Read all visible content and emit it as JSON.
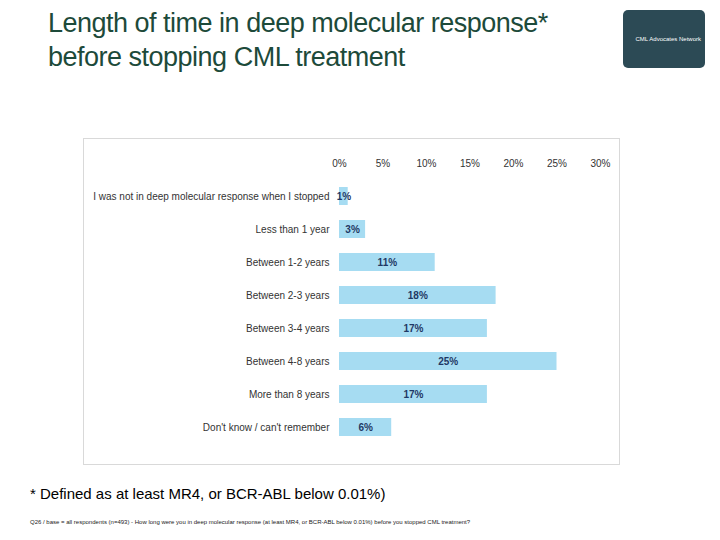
{
  "chart_data": {
    "type": "bar",
    "orientation": "horizontal",
    "title": "Length of time in deep molecular response* before stopping CML treatment",
    "logo": "CML Advocates Network",
    "footnote": "* Defined as at least MR4, or BCR-ABL below 0.01%)",
    "source": "Q26 / base = all respondents (n=493) - How long were you in deep molecular response (at least MR4, or BCR-ABL below 0.01%) before you stopped CML treatment?",
    "categories": [
      "I was not in deep molecular response when I stopped",
      "Less than 1 year",
      "Between 1-2 years",
      "Between 2-3 years",
      "Between 3-4 years",
      "Between 4-8 years",
      "More than 8 years",
      "Don't know / can't remember"
    ],
    "values": [
      1,
      3,
      11,
      18,
      17,
      25,
      17,
      6
    ],
    "value_labels": [
      "1%",
      "3%",
      "11%",
      "18%",
      "17%",
      "25%",
      "17%",
      "6%"
    ],
    "color": "#a6dcf2",
    "xlim": [
      0,
      30
    ],
    "xticks": [
      {
        "value": 0,
        "label": "0%"
      },
      {
        "value": 5,
        "label": "5%"
      },
      {
        "value": 10,
        "label": "10%"
      },
      {
        "value": 15,
        "label": "15%"
      },
      {
        "value": 20,
        "label": "20%"
      },
      {
        "value": 25,
        "label": "25%"
      },
      {
        "value": 30,
        "label": "30%"
      }
    ],
    "grid": false,
    "data_labels": true
  }
}
